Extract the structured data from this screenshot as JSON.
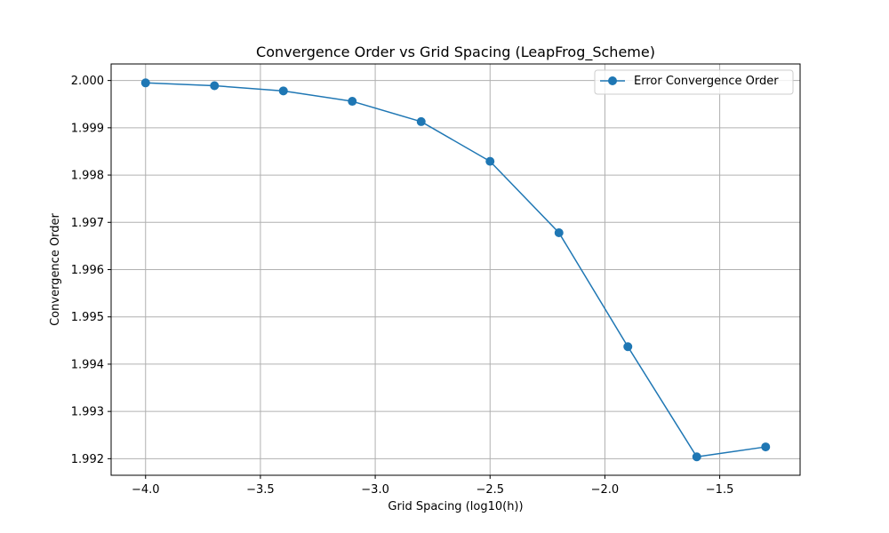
{
  "chart_data": {
    "type": "line",
    "title": "Convergence Order vs Grid Spacing (LeapFrog_Scheme)",
    "xlabel": "Grid Spacing (log10(h))",
    "ylabel": "Convergence Order",
    "xlim": [
      -4.15,
      -1.15
    ],
    "ylim": [
      1.99165,
      2.00035
    ],
    "x_ticks": [
      -4.0,
      -3.5,
      -3.0,
      -2.5,
      -2.0,
      -1.5
    ],
    "x_tick_labels": [
      "−4.0",
      "−3.5",
      "−3.0",
      "−2.5",
      "−2.0",
      "−1.5"
    ],
    "y_ticks": [
      1.992,
      1.993,
      1.994,
      1.995,
      1.996,
      1.997,
      1.998,
      1.999,
      2.0
    ],
    "y_tick_labels": [
      "1.992",
      "1.993",
      "1.994",
      "1.995",
      "1.996",
      "1.997",
      "1.998",
      "1.999",
      "2.000"
    ],
    "grid": true,
    "legend_position": "top-right",
    "series": [
      {
        "name": "Error Convergence Order",
        "color": "#1f77b4",
        "marker": "circle",
        "x": [
          -4.0,
          -3.7,
          -3.4,
          -3.1,
          -2.8,
          -2.5,
          -2.2,
          -1.9,
          -1.6,
          -1.3
        ],
        "y": [
          1.99995,
          1.99989,
          1.99978,
          1.99956,
          1.99913,
          1.99829,
          1.99678,
          1.99437,
          1.99204,
          1.99225
        ]
      }
    ]
  }
}
